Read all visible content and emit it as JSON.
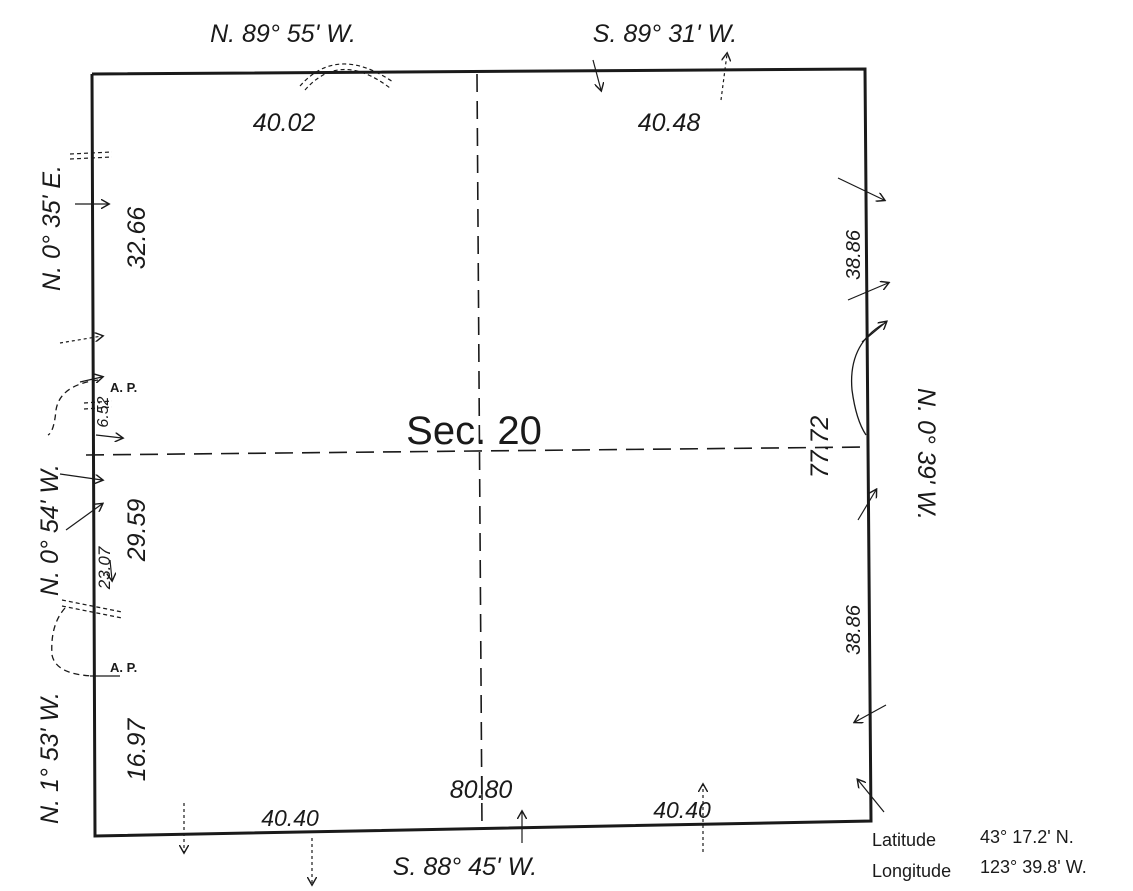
{
  "section_label": "Sec. 20",
  "bearings": {
    "north_west_half": "N. 89° 55' W.",
    "north_east_half": "S. 89° 31' W.",
    "south": "S. 88° 45' W.",
    "west_upper": "N. 0° 35' E.",
    "west_middle": "N. 0° 54' W.",
    "west_lower": "N. 1° 53' W.",
    "east": "N. 0° 39' W."
  },
  "distances": {
    "north_west": "40.02",
    "north_east": "40.48",
    "south_west": "40.40",
    "south_east": "40.40",
    "south_total": "80.80",
    "west_upper": "32.66",
    "west_middle": "29.59",
    "west_lower": "16.97",
    "west_small_upper": "6.52",
    "west_small_lower": "23.07",
    "east_upper": "38.86",
    "east_lower": "38.86",
    "east_total": "77.72"
  },
  "markers": {
    "ap_upper": "A. P.",
    "ap_lower": "A. P."
  },
  "coordinates": {
    "latitude_label": "Latitude",
    "latitude_value": "43° 17.2' N.",
    "longitude_label": "Longitude",
    "longitude_value": "123° 39.8' W."
  }
}
